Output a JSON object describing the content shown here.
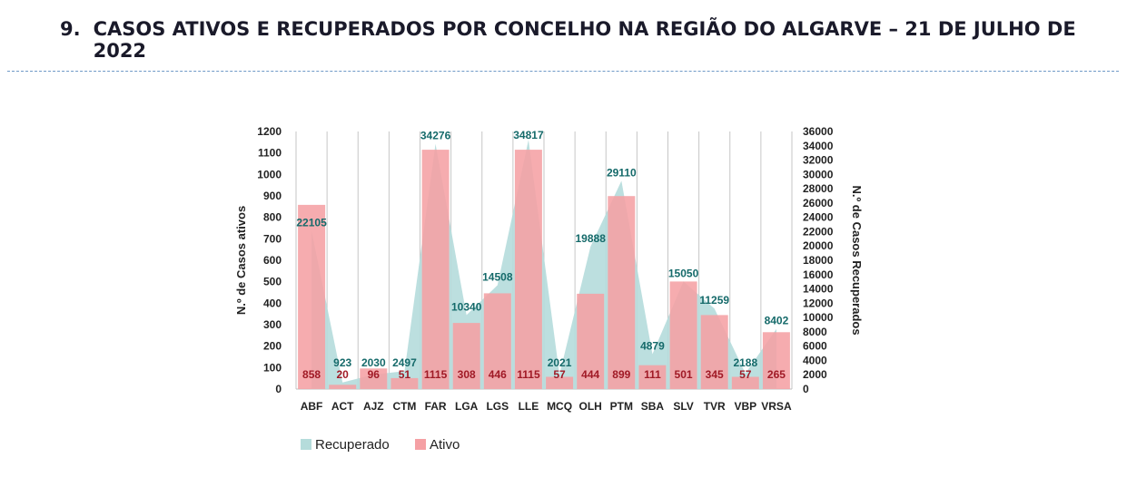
{
  "heading": {
    "number": "9.",
    "text": "CASOS ATIVOS E RECUPERADOS POR CONCELHO NA REGIÃO DO ALGARVE – 21 DE JULHO DE 2022"
  },
  "colors": {
    "recuperado": "#b5dcdb",
    "ativo": "#f5a0a4",
    "recuperado_label": "#156a6a",
    "ativo_label": "#a01a26",
    "grid": "#c6c6c6"
  },
  "chart_data": {
    "type": "bar",
    "categories": [
      "ABF",
      "ACT",
      "AJZ",
      "CTM",
      "FAR",
      "LGA",
      "LGS",
      "LLE",
      "MCQ",
      "OLH",
      "PTM",
      "SBA",
      "SLV",
      "TVR",
      "VBP",
      "VRSA"
    ],
    "series": [
      {
        "name": "Recuperado",
        "type": "area",
        "axis": "right",
        "values": [
          22105,
          923,
          2030,
          2497,
          34276,
          10340,
          14508,
          34817,
          2021,
          19888,
          29110,
          4879,
          15050,
          11259,
          2188,
          8402
        ],
        "labels": [
          "22105",
          "923",
          "2030",
          "2497",
          "34276",
          "10340",
          "14508",
          "34817",
          "2021",
          "19888",
          "29110",
          "4879",
          "15050",
          "11259",
          "2188",
          "8402"
        ]
      },
      {
        "name": "Ativo",
        "type": "bar",
        "axis": "left",
        "values": [
          858,
          20,
          96,
          51,
          1115,
          308,
          446,
          1115,
          57,
          444,
          899,
          111,
          501,
          345,
          57,
          265
        ],
        "labels": [
          "858",
          "20",
          "96",
          "51",
          "1115",
          "308",
          "446",
          "1115",
          "57",
          "444",
          "899",
          "111",
          "501",
          "345",
          "57",
          "265"
        ]
      }
    ],
    "ylabel": "N.º de Casos ativos",
    "y2label": "N.º de Casos Recuperados",
    "ylim": [
      0,
      1200
    ],
    "y2lim": [
      0,
      36000
    ],
    "yticks": [
      "0",
      "100",
      "200",
      "300",
      "400",
      "500",
      "600",
      "700",
      "800",
      "900",
      "1000",
      "1100",
      "1200"
    ],
    "y2ticks": [
      "0",
      "2000",
      "4000",
      "6000",
      "8000",
      "10000",
      "12000",
      "14000",
      "16000",
      "18000",
      "20000",
      "22000",
      "24000",
      "26000",
      "28000",
      "30000",
      "32000",
      "34000",
      "36000"
    ],
    "legend": {
      "position": "bottom-left",
      "items": [
        "Recuperado",
        "Ativo"
      ]
    },
    "grid": "vertical"
  }
}
